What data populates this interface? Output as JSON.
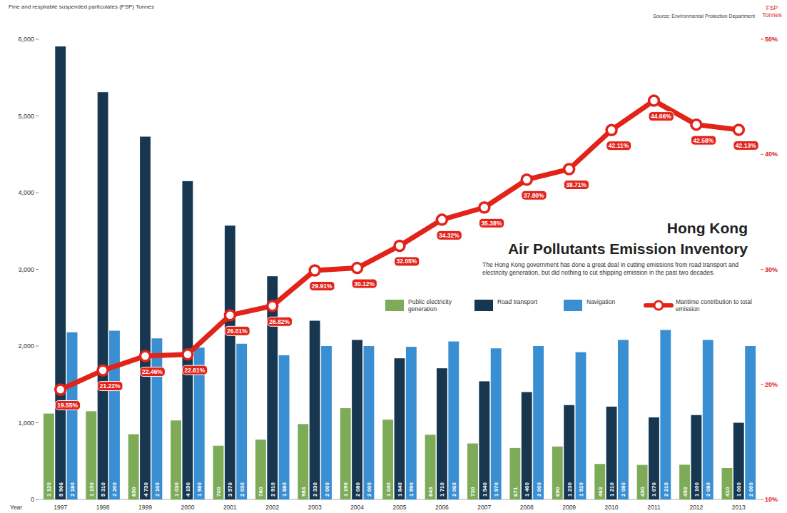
{
  "chart_data": {
    "type": "bar",
    "title": "Hong Kong",
    "subtitle": "Air Pollutants Emission Inventory",
    "ylabel": "Fine and respirable suspended particulates (FSP) Tonnes",
    "y2label": "FSP Tonnes",
    "xlabel": "Year",
    "annotations": [
      "Source: Environmental Protection Department",
      "The Hong Kong government has done a great deal in cutting emissions from road transport and electricity generation, but did nothing to cut shipping emission in the past two decades."
    ],
    "categories": [
      "1997",
      "1998",
      "1999",
      "2000",
      "2001",
      "2002",
      "2003",
      "2004",
      "2005",
      "2006",
      "2007",
      "2008",
      "2009",
      "2010",
      "2011",
      "2012",
      "2013"
    ],
    "series": [
      {
        "name": "Public electricity generation",
        "type": "bar",
        "color": "#7dab58",
        "values": [
          1120,
          1150,
          850,
          1030,
          700,
          780,
          983,
          1190,
          1040,
          843,
          730,
          671,
          690,
          463,
          450,
          453,
          410
        ],
        "value_labels": [
          "1 120",
          "1 150",
          "850",
          "1 030",
          "700",
          "780",
          "983",
          "1 190",
          "1 040",
          "843",
          "730",
          "671",
          "690",
          "463",
          "450",
          "453",
          "410"
        ]
      },
      {
        "name": "Road transport",
        "type": "bar",
        "color": "#17364f",
        "values": [
          5906,
          5310,
          4730,
          4150,
          3570,
          2910,
          2330,
          2080,
          1840,
          1710,
          1540,
          1400,
          1230,
          1210,
          1070,
          1100,
          1000
        ],
        "value_labels": [
          "5 906",
          "5 310",
          "4 730",
          "4 150",
          "3 570",
          "2 910",
          "2 330",
          "2 080",
          "1 840",
          "1 710",
          "1 540",
          "1 400",
          "1 230",
          "1 210",
          "1 070",
          "1 100",
          "1 000"
        ]
      },
      {
        "name": "Navigation",
        "type": "bar",
        "color": "#3a8fd3",
        "values": [
          2180,
          2200,
          2100,
          1980,
          2030,
          1880,
          2000,
          2000,
          1990,
          2060,
          1970,
          2000,
          1920,
          2080,
          2210,
          2080,
          2000
        ],
        "value_labels": [
          "2 180",
          "2 200",
          "2 100",
          "1 980",
          "2 030",
          "1 880",
          "2 000",
          "2 000",
          "1 990",
          "2 060",
          "1 970",
          "2 000",
          "1 920",
          "2 080",
          "2 210",
          "2 080",
          "2 000"
        ]
      },
      {
        "name": "Maritime contribution to total emission",
        "type": "line",
        "axis": "y2",
        "color": "#e2231a",
        "marker": "circle",
        "line_style": "solid",
        "values": [
          19.55,
          21.22,
          22.46,
          22.61,
          26.01,
          26.82,
          29.91,
          30.12,
          32.05,
          34.32,
          35.38,
          37.8,
          38.71,
          42.11,
          44.66,
          42.58,
          42.13
        ],
        "value_labels": [
          "19.55%",
          "21.22%",
          "22.46%",
          "22.61%",
          "26.01%",
          "26.82%",
          "29.91%",
          "30.12%",
          "32.05%",
          "34.32%",
          "35.38%",
          "37.80%",
          "38.71%",
          "42.11%",
          "44.66%",
          "42.58%",
          "42.13%"
        ]
      }
    ],
    "ylim": [
      0,
      6000
    ],
    "yticks": [
      0,
      {
        "value": 1000,
        "label": "1,000"
      },
      {
        "value": 2000,
        "label": "2,000"
      },
      {
        "value": 3000,
        "label": "3,000"
      },
      {
        "value": 4000,
        "label": "4,000"
      },
      {
        "value": 5000,
        "label": "5,000"
      },
      {
        "value": 6000,
        "label": "6,000"
      }
    ],
    "y2lim": [
      10,
      50
    ],
    "y2ticks": [
      {
        "value": 10,
        "label": "10%"
      },
      {
        "value": 20,
        "label": "20%"
      },
      {
        "value": 30,
        "label": "30%"
      },
      {
        "value": 40,
        "label": "40%"
      },
      {
        "value": 50,
        "label": "50%"
      }
    ],
    "grid": false,
    "legend": "right",
    "data_labels": true
  }
}
